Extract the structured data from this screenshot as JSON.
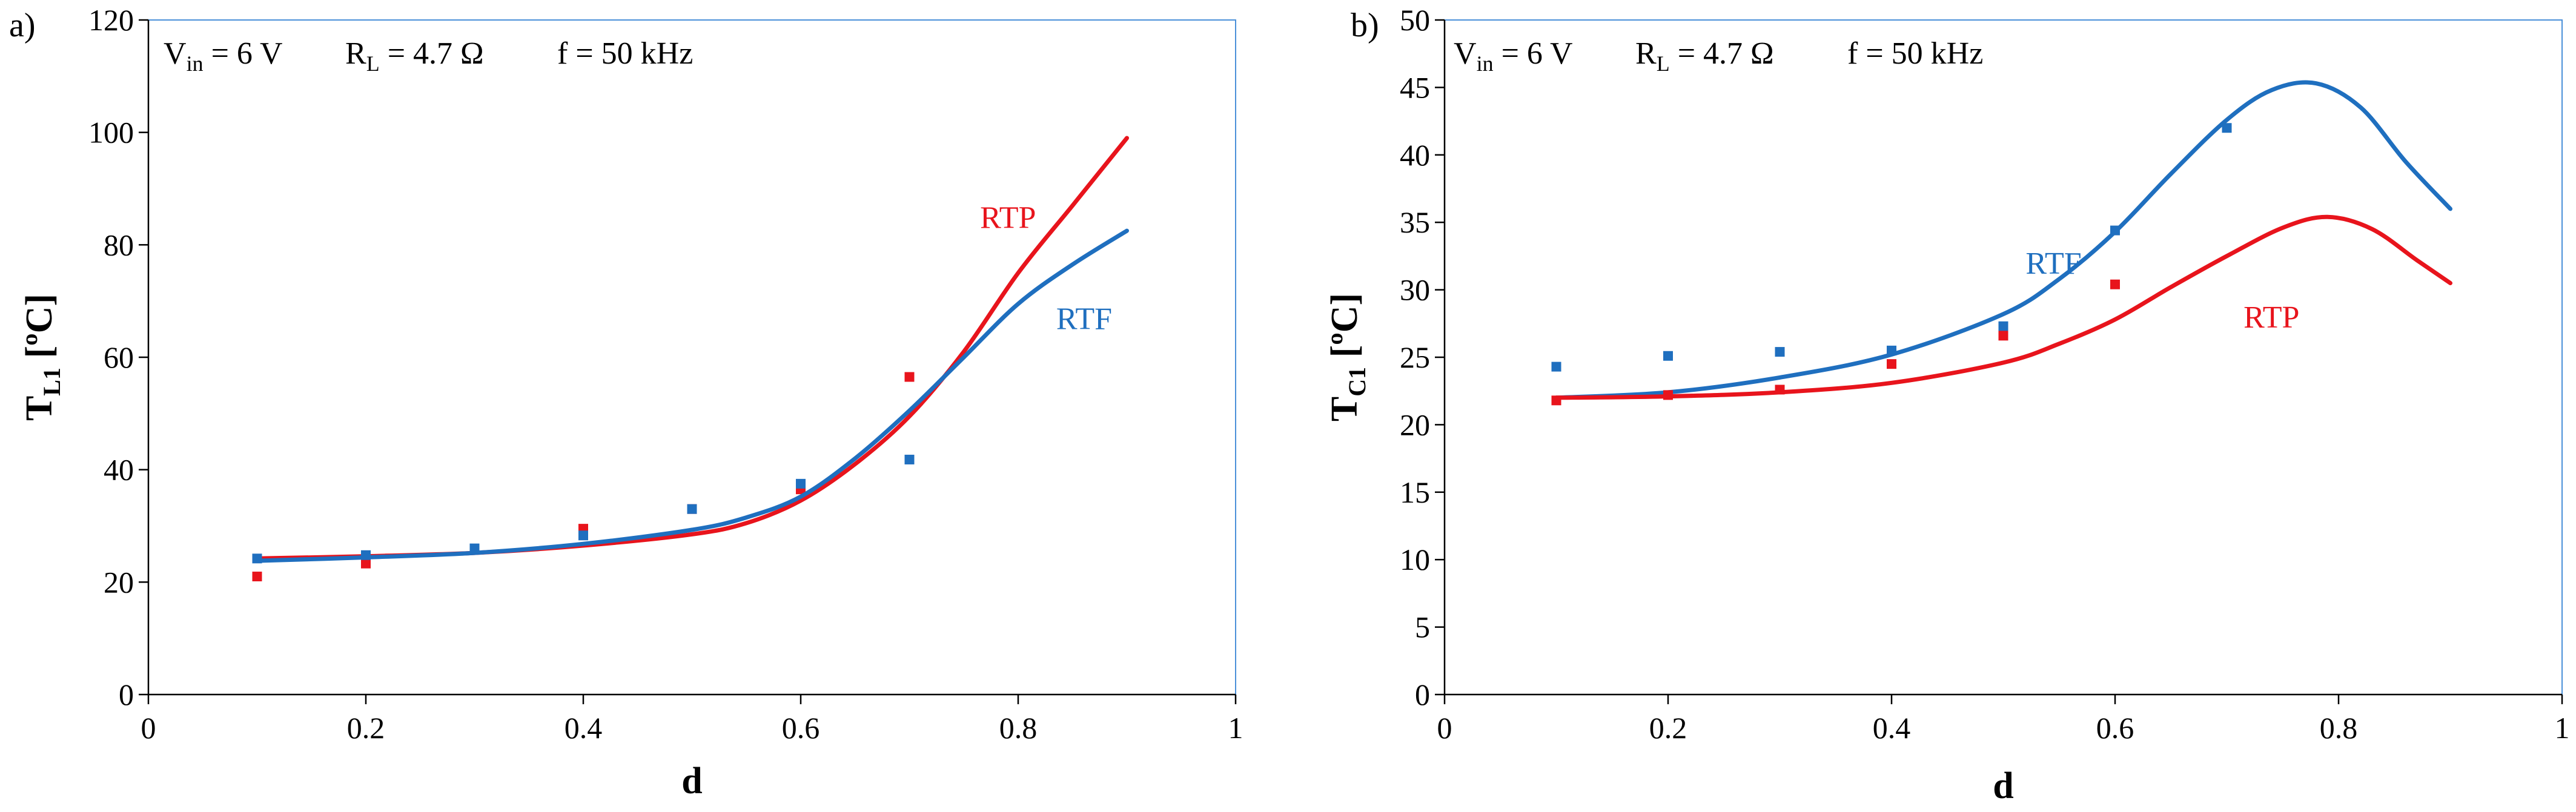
{
  "chart_data": [
    {
      "panel": "a)",
      "type": "line",
      "annotation": {
        "vin": "V",
        "vin_sub": "in",
        "vin_val": " = 6 V",
        "rl": "R",
        "rl_sub": "L",
        "rl_val": " = 4.7 Ω",
        "f": "f = 50 kHz"
      },
      "xlabel": "d",
      "ylabel": {
        "main": "T",
        "sub": "L1",
        "unit": " [ºC]"
      },
      "xlim": [
        0,
        1
      ],
      "ylim": [
        0,
        120
      ],
      "xticks": [
        0,
        0.2,
        0.4,
        0.6,
        0.8,
        1
      ],
      "xtick_labels": [
        "0",
        "0.2",
        "0.4",
        "0.6",
        "0.8",
        "1"
      ],
      "yticks": [
        0,
        20,
        40,
        60,
        80,
        100,
        120
      ],
      "ytick_labels": [
        "0",
        "20",
        "40",
        "60",
        "80",
        "100",
        "120"
      ],
      "series": [
        {
          "name": "RTP",
          "color": "#e8141c",
          "label_pos": [
            0.765,
            83
          ],
          "line": {
            "x": [
              0.1,
              0.2,
              0.3,
              0.4,
              0.5,
              0.55,
              0.6,
              0.65,
              0.7,
              0.75,
              0.8,
              0.85,
              0.9
            ],
            "y": [
              24.2,
              24.6,
              25.2,
              26.5,
              28.5,
              30.5,
              34.5,
              41,
              49.5,
              61,
              75,
              87,
              99
            ]
          },
          "points": {
            "x": [
              0.1,
              0.2,
              0.4,
              0.5,
              0.6,
              0.7
            ],
            "y": [
              21,
              23.3,
              29.5,
              33,
              36.5,
              56.5
            ]
          }
        },
        {
          "name": "RTF",
          "color": "#1f6fbf",
          "label_pos": [
            0.835,
            65
          ],
          "line": {
            "x": [
              0.1,
              0.2,
              0.3,
              0.4,
              0.5,
              0.55,
              0.6,
              0.65,
              0.7,
              0.75,
              0.8,
              0.85,
              0.9
            ],
            "y": [
              23.8,
              24.4,
              25.2,
              26.8,
              29.3,
              31.5,
              35.2,
              42,
              50.5,
              60,
              69.5,
              76.5,
              82.5
            ]
          },
          "points": {
            "x": [
              0.1,
              0.2,
              0.3,
              0.4,
              0.5,
              0.6,
              0.7
            ],
            "y": [
              24.2,
              24.8,
              26,
              28.3,
              33,
              37.5,
              41.8
            ]
          }
        }
      ]
    },
    {
      "panel": "b)",
      "type": "line",
      "annotation": {
        "vin": "V",
        "vin_sub": "in",
        "vin_val": " = 6 V",
        "rl": "R",
        "rl_sub": "L",
        "rl_val": " = 4.7 Ω",
        "f": "f = 50 kHz"
      },
      "xlabel": "d",
      "ylabel": {
        "main": "T",
        "sub": "C1",
        "unit": " [ºC]"
      },
      "xlim": [
        0,
        1
      ],
      "ylim": [
        0,
        50
      ],
      "xticks": [
        0,
        0.2,
        0.4,
        0.6,
        0.8,
        1
      ],
      "xtick_labels": [
        "0",
        "0.2",
        "0.4",
        "0.6",
        "0.8",
        "1"
      ],
      "yticks": [
        0,
        5,
        10,
        15,
        20,
        25,
        30,
        35,
        40,
        45,
        50
      ],
      "ytick_labels": [
        "0",
        "5",
        "10",
        "15",
        "20",
        "25",
        "30",
        "35",
        "40",
        "45",
        "50"
      ],
      "series": [
        {
          "name": "RTF",
          "color": "#1f6fbf",
          "label_pos": [
            0.52,
            31.2
          ],
          "line": {
            "x": [
              0.1,
              0.2,
              0.3,
              0.4,
              0.5,
              0.55,
              0.6,
              0.65,
              0.7,
              0.74,
              0.78,
              0.82,
              0.86,
              0.9
            ],
            "y": [
              22,
              22.4,
              23.5,
              25.2,
              28.2,
              30.8,
              34.3,
              38.6,
              42.6,
              44.8,
              45.3,
              43.5,
              39.5,
              36
            ]
          },
          "points": {
            "x": [
              0.1,
              0.2,
              0.3,
              0.4,
              0.5,
              0.6,
              0.7
            ],
            "y": [
              24.3,
              25.1,
              25.4,
              25.5,
              27.3,
              34.4,
              42
            ]
          }
        },
        {
          "name": "RTP",
          "color": "#e8141c",
          "label_pos": [
            0.715,
            27.2
          ],
          "line": {
            "x": [
              0.1,
              0.2,
              0.3,
              0.4,
              0.5,
              0.55,
              0.6,
              0.65,
              0.7,
              0.75,
              0.79,
              0.83,
              0.87,
              0.9
            ],
            "y": [
              22,
              22.1,
              22.4,
              23.1,
              24.6,
              26,
              27.8,
              30.2,
              32.5,
              34.6,
              35.4,
              34.5,
              32.2,
              30.5
            ]
          },
          "points": {
            "x": [
              0.1,
              0.2,
              0.3,
              0.4,
              0.5,
              0.6
            ],
            "y": [
              21.8,
              22.2,
              22.6,
              24.5,
              26.6,
              30.4
            ]
          }
        }
      ]
    }
  ]
}
